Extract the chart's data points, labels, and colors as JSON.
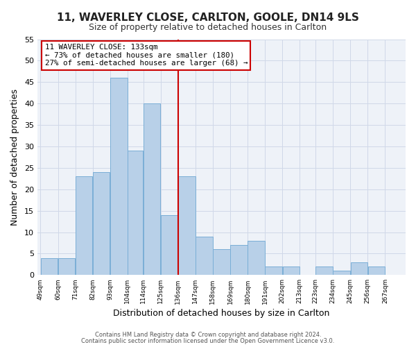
{
  "title": "11, WAVERLEY CLOSE, CARLTON, GOOLE, DN14 9LS",
  "subtitle": "Size of property relative to detached houses in Carlton",
  "xlabel": "Distribution of detached houses by size in Carlton",
  "ylabel": "Number of detached properties",
  "bins": [
    49,
    60,
    71,
    82,
    93,
    104,
    114,
    125,
    136,
    147,
    158,
    169,
    180,
    191,
    202,
    213,
    223,
    234,
    245,
    256,
    267
  ],
  "bin_labels": [
    "49sqm",
    "60sqm",
    "71sqm",
    "82sqm",
    "93sqm",
    "104sqm",
    "114sqm",
    "125sqm",
    "136sqm",
    "147sqm",
    "158sqm",
    "169sqm",
    "180sqm",
    "191sqm",
    "202sqm",
    "213sqm",
    "223sqm",
    "234sqm",
    "245sqm",
    "256sqm",
    "267sqm"
  ],
  "values": [
    4,
    4,
    23,
    24,
    46,
    29,
    40,
    14,
    23,
    9,
    6,
    7,
    8,
    2,
    2,
    0,
    2,
    1,
    3,
    2,
    0
  ],
  "bar_color": "#b8d0e8",
  "bar_edge_color": "#7aaed6",
  "vline_x": 136,
  "vline_color": "#cc0000",
  "annotation_title": "11 WAVERLEY CLOSE: 133sqm",
  "annotation_line1": "← 73% of detached houses are smaller (180)",
  "annotation_line2": "27% of semi-detached houses are larger (68) →",
  "annotation_box_color": "#cc0000",
  "ylim": [
    0,
    55
  ],
  "yticks": [
    0,
    5,
    10,
    15,
    20,
    25,
    30,
    35,
    40,
    45,
    50,
    55
  ],
  "grid_color": "#d0d8e8",
  "background_color": "#eef2f8",
  "fig_background": "#ffffff",
  "footer1": "Contains HM Land Registry data © Crown copyright and database right 2024.",
  "footer2": "Contains public sector information licensed under the Open Government Licence v3.0."
}
